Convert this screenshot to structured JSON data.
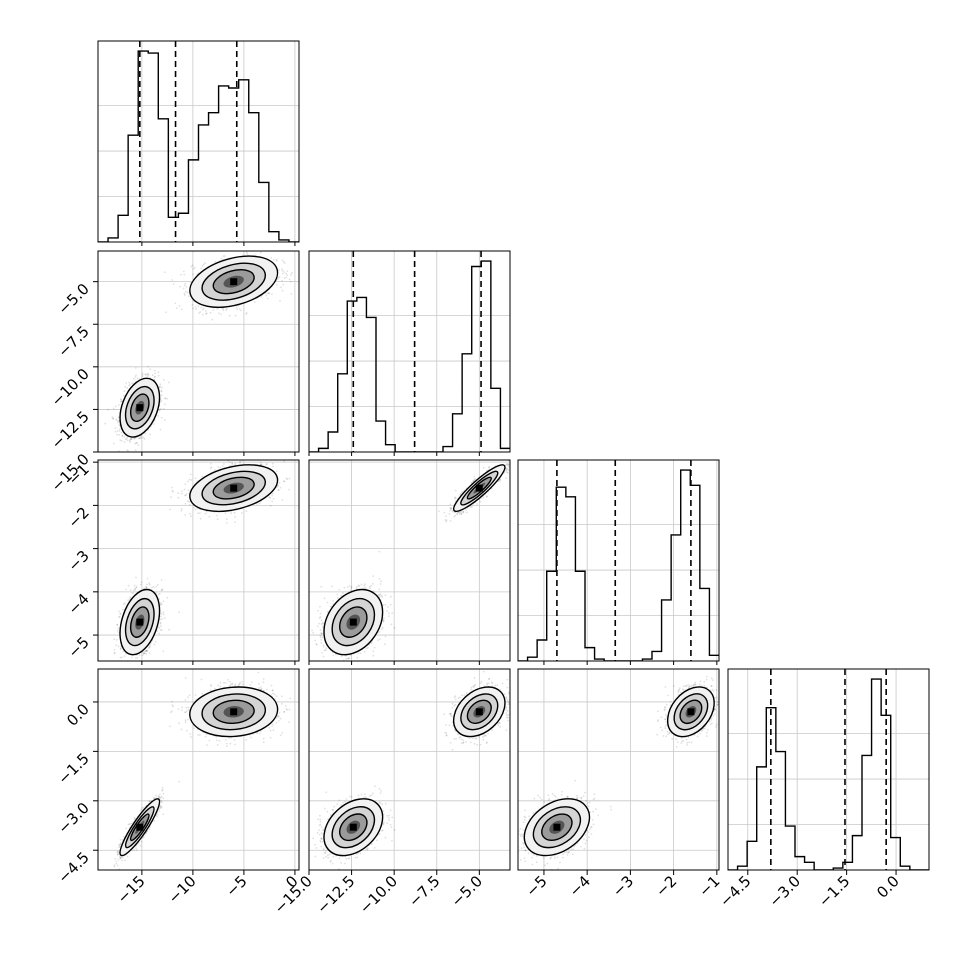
{
  "figure": {
    "kind": "corner plot"
  },
  "chart_data": {
    "type": "corner",
    "parameters": [
      {
        "ticks": [
          -15,
          -10,
          -5,
          0
        ],
        "tick_labels": [
          "-15",
          "-10",
          "-5",
          "0"
        ],
        "lim": [
          -19.3,
          0.4
        ]
      },
      {
        "ticks": [
          -15.0,
          -12.5,
          -10.0,
          -7.5,
          -5.0
        ],
        "tick_labels": [
          "-15.0",
          "-12.5",
          "-10.0",
          "-7.5",
          "-5.0"
        ],
        "lim": [
          -15.0,
          -3.2
        ]
      },
      {
        "ticks": [
          -5,
          -4,
          -3,
          -2,
          -1
        ],
        "tick_labels": [
          "-5",
          "-4",
          "-3",
          "-2",
          "-1"
        ],
        "lim": [
          -5.6,
          -0.95
        ]
      },
      {
        "ticks": [
          -4.5,
          -3.0,
          -1.5,
          0.0
        ],
        "tick_labels": [
          "-4.5",
          "-3.0",
          "-1.5",
          "0.0"
        ],
        "lim": [
          -5.1,
          1.0
        ]
      }
    ],
    "histograms": [
      {
        "values": [
          0.0,
          0.02,
          0.13,
          0.52,
          0.93,
          0.92,
          0.6,
          0.12,
          0.14,
          0.4,
          0.57,
          0.63,
          0.76,
          0.75,
          0.79,
          0.63,
          0.29,
          0.05,
          0.01,
          0.0
        ],
        "quantiles": [
          -15.2,
          -11.7,
          -5.7
        ]
      },
      {
        "values": [
          0.0,
          0.02,
          0.11,
          0.43,
          0.83,
          0.85,
          0.74,
          0.17,
          0.04,
          0.0,
          0.0,
          0.0,
          0.0,
          0.0,
          0.03,
          0.21,
          0.54,
          1.02,
          1.05,
          0.35,
          0.02
        ],
        "quantiles": [
          -12.4,
          -8.8,
          -4.9
        ]
      },
      {
        "values": [
          0.0,
          0.02,
          0.11,
          0.47,
          0.91,
          0.86,
          0.47,
          0.07,
          0.01,
          0.0,
          0.0,
          0.0,
          0.0,
          0.01,
          0.05,
          0.32,
          0.66,
          1.0,
          0.92,
          0.38,
          0.03
        ],
        "quantiles": [
          -4.7,
          -3.35,
          -1.6
        ]
      },
      {
        "values": [
          0.0,
          0.02,
          0.15,
          0.54,
          0.85,
          0.62,
          0.23,
          0.07,
          0.04,
          0.0,
          0.0,
          0.01,
          0.04,
          0.18,
          0.6,
          1.0,
          0.81,
          0.17,
          0.02,
          0.0,
          0.0
        ],
        "quantiles": [
          -3.8,
          -1.55,
          -0.3
        ]
      }
    ],
    "modes": [
      {
        "center": [
          -15.2,
          -12.4,
          -4.7,
          -3.8
        ],
        "sd": [
          0.9,
          0.8,
          0.35,
          0.4
        ],
        "weight": 0.5
      },
      {
        "center": [
          -6.0,
          -5.0,
          -1.6,
          -0.3
        ],
        "sd": [
          2.0,
          0.7,
          0.25,
          0.35
        ],
        "weight": 0.5
      }
    ],
    "correlations": {
      "0-3": [
        0.9,
        0.1
      ],
      "1-2": [
        0.3,
        0.9
      ]
    },
    "grid": true
  }
}
